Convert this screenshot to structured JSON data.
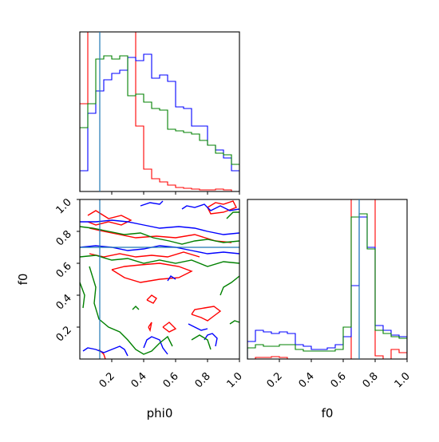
{
  "chart_data": {
    "type": "corner",
    "parameters": [
      "phi0",
      "f0"
    ],
    "truths": {
      "phi0": 0.125,
      "f0": 0.7
    },
    "truth_color": "#1f77b4",
    "series": [
      {
        "color": "#ff0000"
      },
      {
        "color": "#0000ff"
      },
      {
        "color": "#008000"
      }
    ],
    "hist_phi0": {
      "bins": 20,
      "range": [
        0,
        1
      ],
      "ylim": [
        0,
        1.0
      ],
      "red": [
        0.55,
        1.0,
        1.0,
        1.0,
        1.0,
        1.0,
        1.0,
        0.41,
        0.14,
        0.08,
        0.06,
        0.04,
        0.025,
        0.02,
        0.015,
        0.01,
        0.01,
        0.015,
        0.01,
        0.0
      ],
      "blue": [
        0.13,
        0.49,
        0.63,
        0.7,
        0.74,
        0.76,
        0.84,
        0.82,
        0.86,
        0.71,
        0.73,
        0.69,
        0.53,
        0.52,
        0.41,
        0.41,
        0.29,
        0.26,
        0.21,
        0.13
      ],
      "green": [
        0.4,
        0.55,
        0.83,
        0.85,
        0.83,
        0.85,
        0.6,
        0.61,
        0.56,
        0.52,
        0.51,
        0.39,
        0.38,
        0.37,
        0.36,
        0.32,
        0.29,
        0.24,
        0.23,
        0.17
      ]
    },
    "hist_f0": {
      "bins": 20,
      "range": [
        0,
        1
      ],
      "ylim": [
        0,
        1.0
      ],
      "red": [
        0.0,
        0.01,
        0.01,
        0.015,
        0.01,
        0.0,
        0.0,
        0.0,
        0.0,
        0.0,
        0.0,
        0.0,
        0.0,
        1.0,
        1.0,
        1.0,
        0.02,
        0.0,
        0.06,
        0.04
      ],
      "blue": [
        0.11,
        0.18,
        0.17,
        0.16,
        0.17,
        0.16,
        0.09,
        0.08,
        0.06,
        0.06,
        0.07,
        0.09,
        0.14,
        0.46,
        0.89,
        0.7,
        0.21,
        0.18,
        0.15,
        0.14
      ],
      "green": [
        0.07,
        0.09,
        0.08,
        0.08,
        0.09,
        0.09,
        0.06,
        0.05,
        0.05,
        0.05,
        0.05,
        0.06,
        0.2,
        0.89,
        0.91,
        0.69,
        0.18,
        0.16,
        0.14,
        0.13
      ]
    },
    "contour_2d": {
      "xlim": [
        0,
        1.0
      ],
      "ylim": [
        0,
        1.0
      ],
      "contours": [
        {
          "series": "red",
          "points": [
            [
              0.05,
              0.9
            ],
            [
              0.1,
              0.93
            ],
            [
              0.18,
              0.88
            ],
            [
              0.26,
              0.9
            ],
            [
              0.32,
              0.87
            ],
            [
              0.26,
              0.84
            ],
            [
              0.18,
              0.86
            ],
            [
              0.1,
              0.84
            ],
            [
              0.05,
              0.86
            ]
          ]
        },
        {
          "series": "red",
          "points": [
            [
              0.06,
              0.82
            ],
            [
              0.15,
              0.8
            ],
            [
              0.25,
              0.78
            ],
            [
              0.35,
              0.76
            ],
            [
              0.48,
              0.77
            ],
            [
              0.6,
              0.76
            ],
            [
              0.72,
              0.78
            ],
            [
              0.85,
              0.74
            ],
            [
              0.95,
              0.73
            ]
          ]
        },
        {
          "series": "red",
          "points": [
            [
              0.06,
              0.66
            ],
            [
              0.15,
              0.64
            ],
            [
              0.25,
              0.66
            ],
            [
              0.35,
              0.64
            ],
            [
              0.45,
              0.65
            ],
            [
              0.55,
              0.64
            ],
            [
              0.65,
              0.67
            ],
            [
              0.75,
              0.64
            ]
          ]
        },
        {
          "series": "red",
          "points": [
            [
              0.2,
              0.56
            ],
            [
              0.28,
              0.51
            ],
            [
              0.38,
              0.48
            ],
            [
              0.5,
              0.5
            ],
            [
              0.62,
              0.51
            ],
            [
              0.7,
              0.55
            ],
            [
              0.62,
              0.58
            ],
            [
              0.5,
              0.6
            ],
            [
              0.38,
              0.59
            ],
            [
              0.28,
              0.58
            ],
            [
              0.2,
              0.56
            ]
          ]
        },
        {
          "series": "red",
          "points": [
            [
              0.52,
              0.2
            ],
            [
              0.56,
              0.17
            ],
            [
              0.6,
              0.19
            ],
            [
              0.56,
              0.23
            ],
            [
              0.52,
              0.2
            ]
          ]
        },
        {
          "series": "red",
          "points": [
            [
              0.7,
              0.28
            ],
            [
              0.76,
              0.26
            ],
            [
              0.8,
              0.24
            ],
            [
              0.84,
              0.27
            ],
            [
              0.88,
              0.3
            ],
            [
              0.84,
              0.33
            ],
            [
              0.78,
              0.32
            ],
            [
              0.72,
              0.31
            ],
            [
              0.7,
              0.28
            ]
          ]
        },
        {
          "series": "red",
          "points": [
            [
              0.42,
              0.37
            ],
            [
              0.46,
              0.35
            ],
            [
              0.48,
              0.38
            ],
            [
              0.45,
              0.4
            ],
            [
              0.42,
              0.37
            ]
          ]
        },
        {
          "series": "red",
          "points": [
            [
              0.8,
              0.95
            ],
            [
              0.85,
              0.98
            ],
            [
              0.9,
              0.97
            ],
            [
              0.96,
              0.99
            ],
            [
              0.98,
              0.95
            ],
            [
              0.9,
              0.92
            ],
            [
              0.82,
              0.91
            ],
            [
              0.8,
              0.95
            ]
          ]
        },
        {
          "series": "red",
          "points": [
            [
              0.12,
              0.06
            ],
            [
              0.15,
              0.03
            ],
            [
              0.16,
              0.0
            ]
          ]
        },
        {
          "series": "red",
          "points": [
            [
              0.43,
              0.2
            ],
            [
              0.45,
              0.23
            ],
            [
              0.44,
              0.18
            ],
            [
              0.43,
              0.2
            ]
          ]
        },
        {
          "series": "blue",
          "points": [
            [
              0.0,
              0.86
            ],
            [
              0.1,
              0.86
            ],
            [
              0.2,
              0.87
            ],
            [
              0.3,
              0.86
            ],
            [
              0.4,
              0.84
            ],
            [
              0.5,
              0.82
            ],
            [
              0.62,
              0.83
            ],
            [
              0.72,
              0.82
            ],
            [
              0.8,
              0.8
            ],
            [
              0.9,
              0.78
            ],
            [
              1.0,
              0.79
            ]
          ]
        },
        {
          "series": "blue",
          "points": [
            [
              0.0,
              0.7
            ],
            [
              0.1,
              0.71
            ],
            [
              0.2,
              0.7
            ],
            [
              0.3,
              0.68
            ],
            [
              0.4,
              0.69
            ],
            [
              0.5,
              0.71
            ],
            [
              0.6,
              0.7
            ],
            [
              0.7,
              0.68
            ],
            [
              0.8,
              0.66
            ],
            [
              0.9,
              0.67
            ],
            [
              1.0,
              0.66
            ]
          ]
        },
        {
          "series": "blue",
          "points": [
            [
              0.02,
              0.05
            ],
            [
              0.05,
              0.07
            ],
            [
              0.1,
              0.06
            ],
            [
              0.15,
              0.04
            ],
            [
              0.2,
              0.06
            ],
            [
              0.25,
              0.08
            ],
            [
              0.28,
              0.06
            ],
            [
              0.3,
              0.02
            ]
          ]
        },
        {
          "series": "blue",
          "points": [
            [
              0.4,
              0.07
            ],
            [
              0.42,
              0.12
            ],
            [
              0.45,
              0.14
            ],
            [
              0.5,
              0.12
            ],
            [
              0.52,
              0.07
            ],
            [
              0.55,
              0.03
            ]
          ]
        },
        {
          "series": "blue",
          "points": [
            [
              0.78,
              0.12
            ],
            [
              0.8,
              0.15
            ],
            [
              0.83,
              0.16
            ],
            [
              0.86,
              0.13
            ],
            [
              0.85,
              0.08
            ]
          ]
        },
        {
          "series": "blue",
          "points": [
            [
              0.68,
              0.22
            ],
            [
              0.72,
              0.2
            ],
            [
              0.76,
              0.18
            ],
            [
              0.8,
              0.19
            ]
          ]
        },
        {
          "series": "blue",
          "points": [
            [
              0.64,
              0.94
            ],
            [
              0.67,
              0.96
            ],
            [
              0.72,
              0.95
            ],
            [
              0.78,
              0.97
            ],
            [
              0.82,
              0.93
            ],
            [
              0.88,
              0.96
            ],
            [
              0.94,
              0.93
            ],
            [
              1.0,
              0.94
            ]
          ]
        },
        {
          "series": "blue",
          "points": [
            [
              0.38,
              0.96
            ],
            [
              0.44,
              0.98
            ],
            [
              0.5,
              0.97
            ],
            [
              0.52,
              0.99
            ]
          ]
        },
        {
          "series": "blue",
          "points": [
            [
              0.55,
              0.49
            ],
            [
              0.57,
              0.52
            ],
            [
              0.6,
              0.5
            ]
          ]
        },
        {
          "series": "green",
          "points": [
            [
              0.0,
              0.83
            ],
            [
              0.08,
              0.82
            ],
            [
              0.18,
              0.8
            ],
            [
              0.28,
              0.78
            ],
            [
              0.38,
              0.79
            ],
            [
              0.46,
              0.76
            ],
            [
              0.56,
              0.74
            ],
            [
              0.64,
              0.72
            ],
            [
              0.72,
              0.74
            ],
            [
              0.8,
              0.75
            ],
            [
              0.9,
              0.73
            ],
            [
              1.0,
              0.74
            ]
          ]
        },
        {
          "series": "green",
          "points": [
            [
              0.0,
              0.64
            ],
            [
              0.1,
              0.65
            ],
            [
              0.2,
              0.62
            ],
            [
              0.3,
              0.63
            ],
            [
              0.4,
              0.6
            ],
            [
              0.5,
              0.62
            ],
            [
              0.6,
              0.6
            ],
            [
              0.7,
              0.62
            ],
            [
              0.8,
              0.58
            ],
            [
              0.9,
              0.61
            ],
            [
              1.0,
              0.6
            ]
          ]
        },
        {
          "series": "green",
          "points": [
            [
              0.06,
              0.58
            ],
            [
              0.1,
              0.45
            ],
            [
              0.09,
              0.35
            ],
            [
              0.12,
              0.25
            ],
            [
              0.18,
              0.2
            ],
            [
              0.25,
              0.17
            ],
            [
              0.3,
              0.12
            ],
            [
              0.35,
              0.06
            ],
            [
              0.4,
              0.03
            ],
            [
              0.45,
              0.05
            ],
            [
              0.5,
              0.1
            ],
            [
              0.55,
              0.14
            ],
            [
              0.58,
              0.08
            ]
          ]
        },
        {
          "series": "green",
          "points": [
            [
              0.88,
              0.4
            ],
            [
              0.9,
              0.45
            ],
            [
              0.95,
              0.48
            ],
            [
              1.0,
              0.52
            ]
          ]
        },
        {
          "series": "green",
          "points": [
            [
              0.94,
              0.22
            ],
            [
              0.97,
              0.24
            ],
            [
              1.0,
              0.23
            ]
          ]
        },
        {
          "series": "green",
          "points": [
            [
              0.92,
              0.88
            ],
            [
              0.96,
              0.92
            ],
            [
              1.0,
              0.92
            ]
          ]
        },
        {
          "series": "green",
          "points": [
            [
              0.0,
              0.48
            ],
            [
              0.03,
              0.4
            ],
            [
              0.02,
              0.32
            ]
          ]
        },
        {
          "series": "green",
          "points": [
            [
              0.33,
              0.31
            ],
            [
              0.35,
              0.33
            ],
            [
              0.37,
              0.31
            ]
          ]
        },
        {
          "series": "green",
          "points": [
            [
              0.7,
              0.12
            ],
            [
              0.75,
              0.15
            ],
            [
              0.8,
              0.12
            ],
            [
              0.82,
              0.06
            ]
          ]
        }
      ]
    },
    "x_ticks": [
      "0.2",
      "0.4",
      "0.6",
      "0.8",
      "1.0"
    ],
    "y_ticks": [
      "0.2",
      "0.4",
      "0.6",
      "0.8",
      "1.0"
    ],
    "xlabel_left": "phi0",
    "xlabel_right": "f0",
    "ylabel": "f0"
  }
}
